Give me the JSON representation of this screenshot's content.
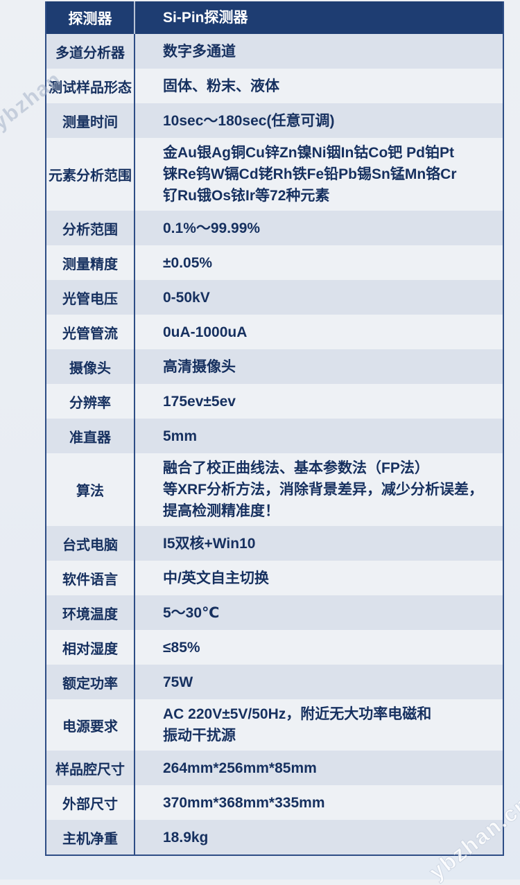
{
  "watermarks": {
    "top_left": "ybzhan",
    "bottom_right": "ybzhan.cn"
  },
  "colors": {
    "header_bg": "#1e3d72",
    "row_shade": "#dbe1eb",
    "row_plain": "#eef1f5",
    "border_navy": "#2e4d85",
    "header_divider": "#b9c4d6",
    "text_navy": "#16305f",
    "page_bg": "#e9edf3"
  },
  "table": {
    "header": {
      "label": "探测器",
      "value": "Si-Pin探测器"
    },
    "rows": [
      {
        "label": "多道分析器",
        "value": "数字多通道"
      },
      {
        "label": "测试样品形态",
        "value": "固体、粉末、液体"
      },
      {
        "label": "测量时间",
        "value": "10sec～180sec(任意可调)"
      },
      {
        "label": "元素分析范围",
        "value": "金Au银Ag铜Cu锌Zn镍Ni铟In钴Co钯 Pd铂Pt\n铼Re钨W镉Cd铑Rh铁Fe铅Pb锡Sn锰Mn铬Cr\n钌Ru锇Os铱Ir等72种元素"
      },
      {
        "label": "分析范围",
        "value": "0.1%～99.99%"
      },
      {
        "label": "测量精度",
        "value": "±0.05%"
      },
      {
        "label": "光管电压",
        "value": "0-50kV"
      },
      {
        "label": "光管管流",
        "value": "0uA-1000uA"
      },
      {
        "label": "摄像头",
        "value": "高清摄像头"
      },
      {
        "label": "分辨率",
        "value": "175ev±5ev"
      },
      {
        "label": "准直器",
        "value": "5mm"
      },
      {
        "label": "算法",
        "value": "融合了校正曲线法、基本参数法（FP法）\n等XRF分析方法，消除背景差异，减少分析误差，\n提高检测精准度！"
      },
      {
        "label": "台式电脑",
        "value": "I5双核+Win10"
      },
      {
        "label": "软件语言",
        "value": "中/英文自主切换"
      },
      {
        "label": "环境温度",
        "value": "5～30℃"
      },
      {
        "label": "相对湿度",
        "value": "≤85%"
      },
      {
        "label": "额定功率",
        "value": "75W"
      },
      {
        "label": "电源要求",
        "value": "AC 220V±5V/50Hz，附近无大功率电磁和\n振动干扰源"
      },
      {
        "label": "样品腔尺寸",
        "value": "264mm*256mm*85mm"
      },
      {
        "label": "外部尺寸",
        "value": "370mm*368mm*335mm"
      },
      {
        "label": "主机净重",
        "value": "18.9kg"
      }
    ]
  }
}
